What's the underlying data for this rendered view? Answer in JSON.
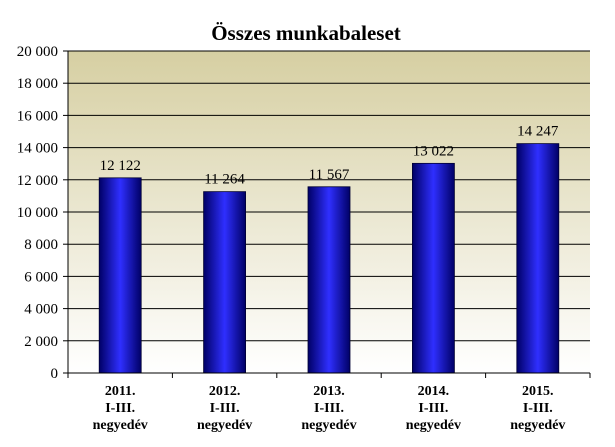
{
  "chart_data": {
    "type": "bar",
    "title": "Összes munkabaleset",
    "categories": [
      [
        "2011.",
        "I-III.",
        "negyedév"
      ],
      [
        "2012.",
        "I-III.",
        "negyedév"
      ],
      [
        "2013.",
        "I-III.",
        "negyedév"
      ],
      [
        "2014.",
        "I-III.",
        "negyedév"
      ],
      [
        "2015.",
        "I-III.",
        "negyedév"
      ]
    ],
    "values": [
      12122,
      11264,
      11567,
      13022,
      14247
    ],
    "data_labels": [
      "12 122",
      "11 264",
      "11 567",
      "13 022",
      "14 247"
    ],
    "yticks": [
      0,
      2000,
      4000,
      6000,
      8000,
      10000,
      12000,
      14000,
      16000,
      18000,
      20000
    ],
    "ytick_labels": [
      "0",
      "2 000",
      "4 000",
      "6 000",
      "8 000",
      "10 000",
      "12 000",
      "14 000",
      "16 000",
      "18 000",
      "20 000"
    ],
    "ylim": [
      0,
      20000
    ],
    "xlabel": "",
    "ylabel": "",
    "grid": true,
    "legend": "none",
    "colors": {
      "bar_dark": "#000066",
      "bar_light": "#2f2fff",
      "plot_bg_top": "#d6cfa2",
      "plot_bg_bottom": "#ffffff",
      "gridline": "#000000"
    }
  }
}
